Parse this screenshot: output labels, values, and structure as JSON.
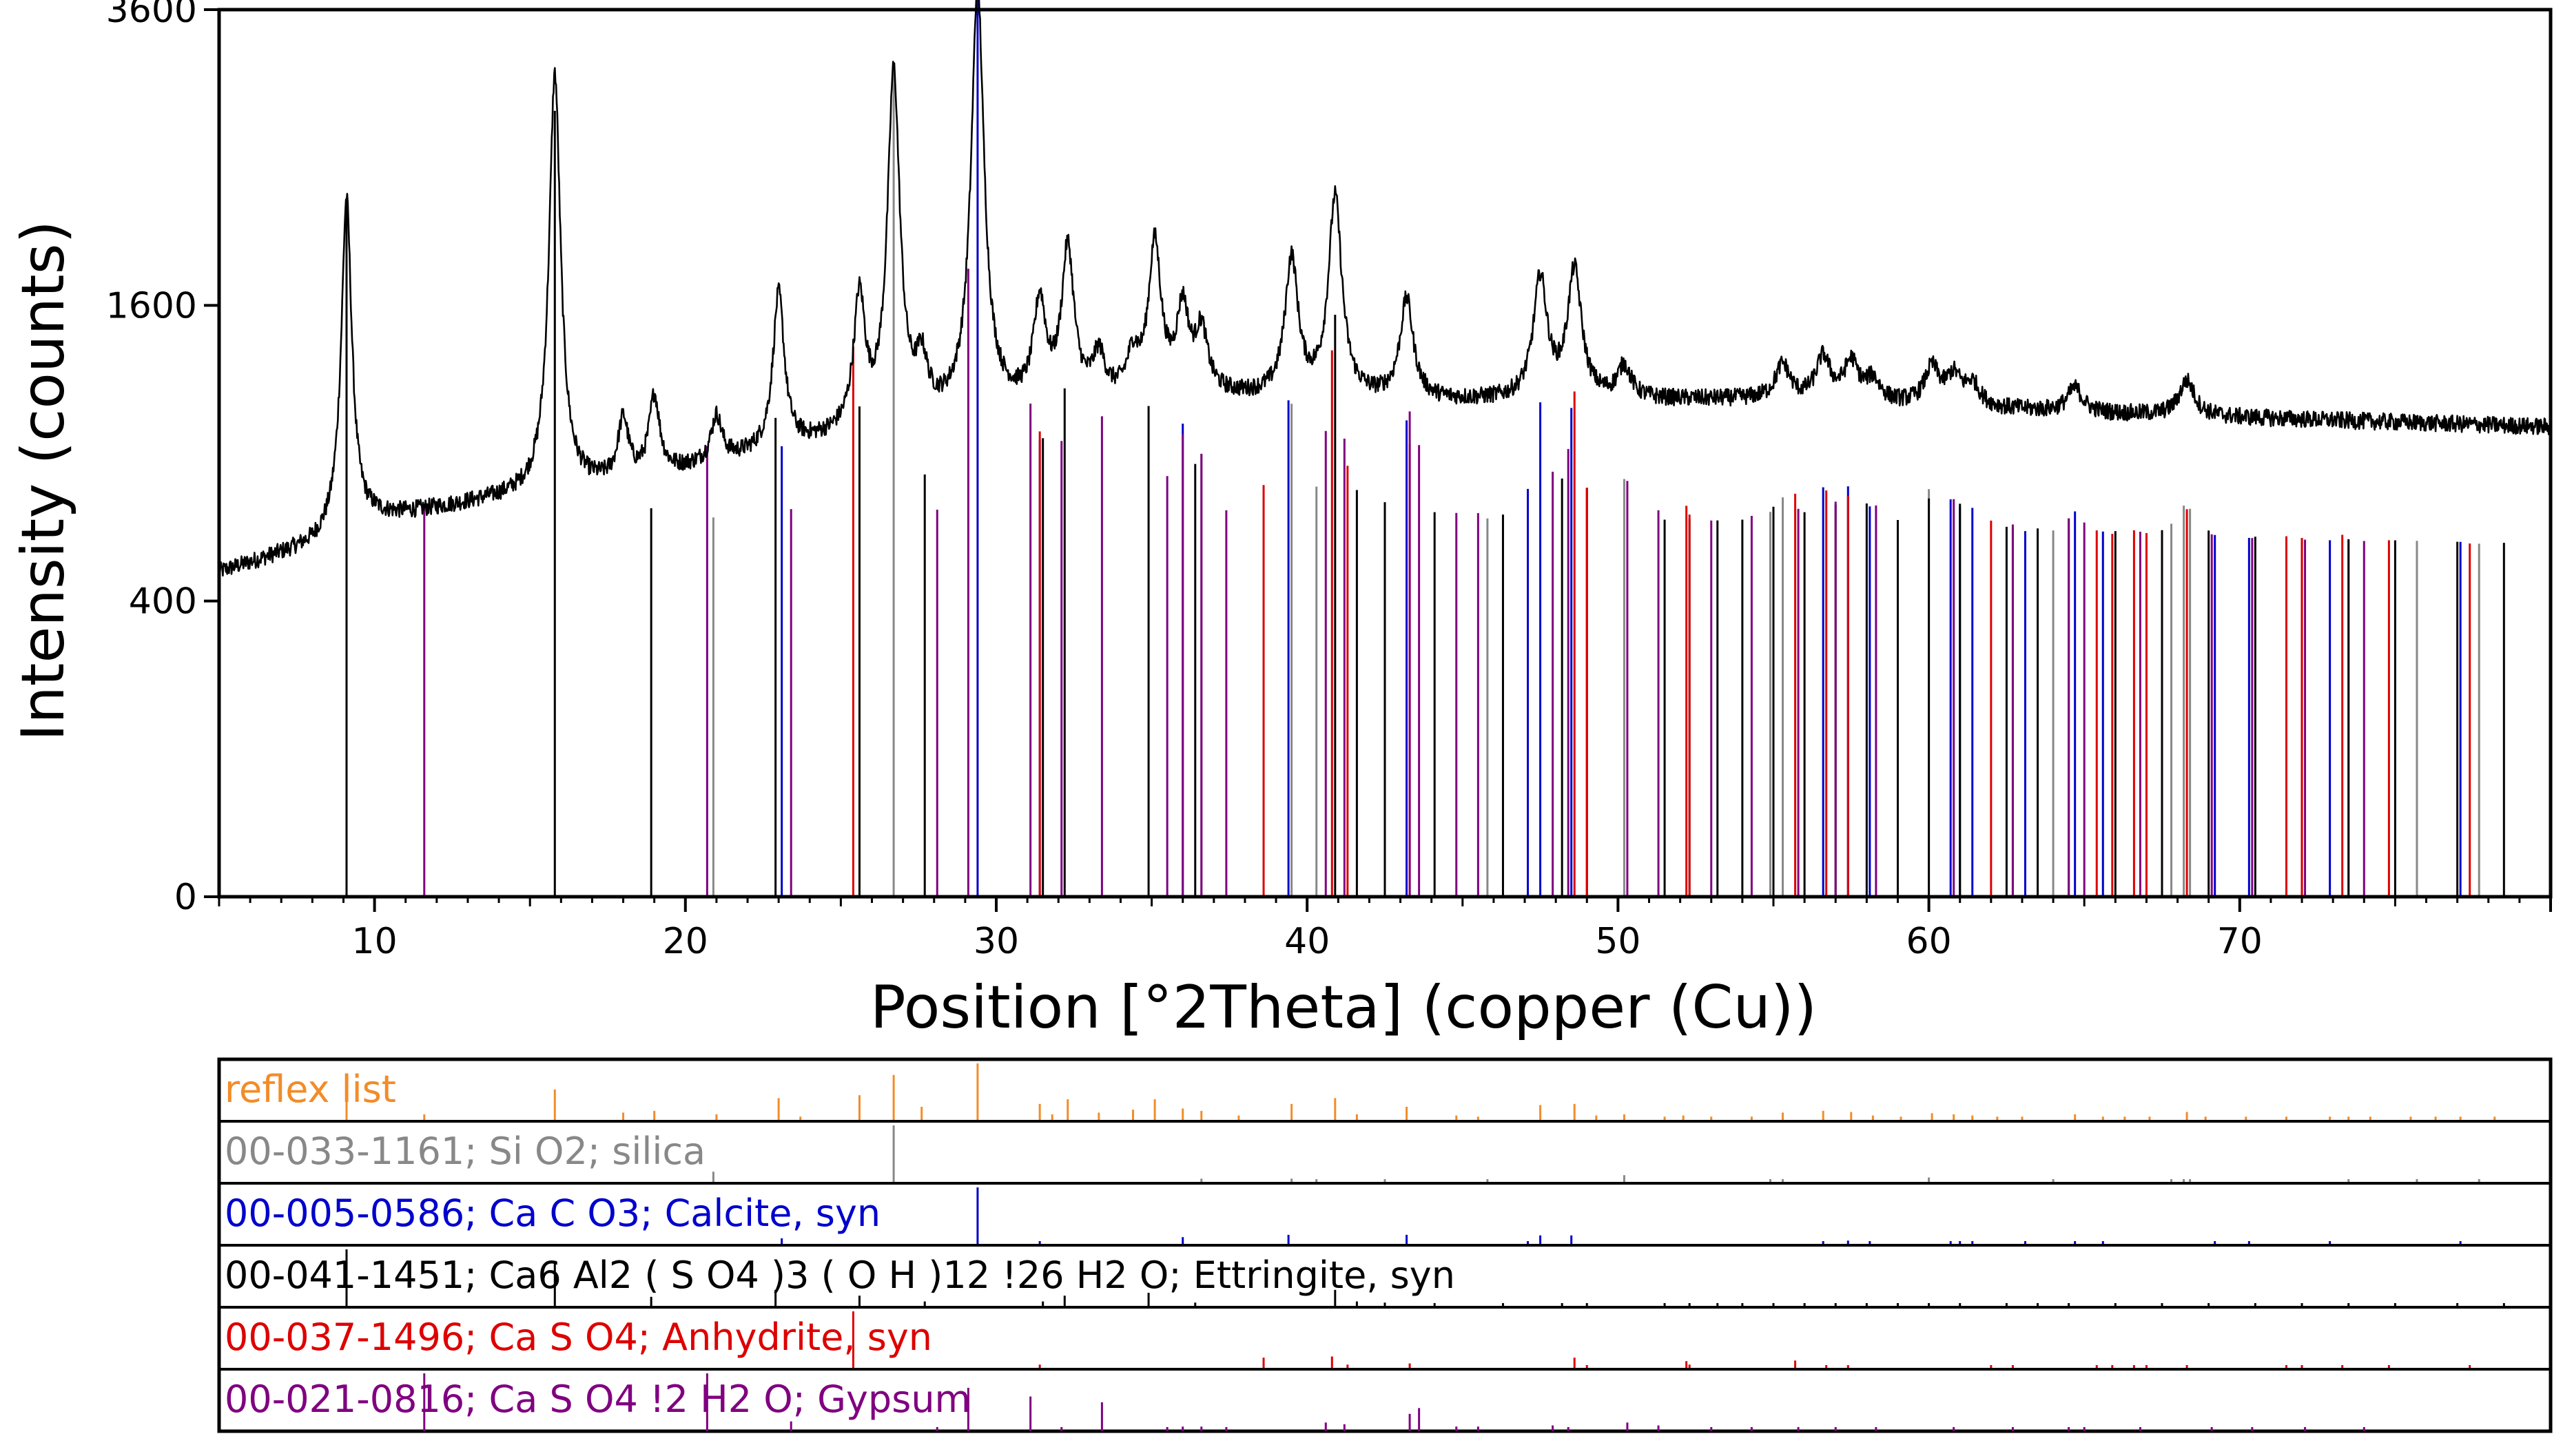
{
  "chart_data": {
    "type": "line",
    "title": "",
    "xlabel": "Position [°2Theta] (copper (Cu))",
    "ylabel": "Intensity (counts)",
    "xlim": [
      5,
      80
    ],
    "ylim": [
      0,
      3600
    ],
    "y_scale": "sqrt",
    "x_ticks": [
      10,
      20,
      30,
      40,
      50,
      60,
      70
    ],
    "y_ticks": [
      0,
      400,
      1600,
      3600
    ],
    "baseline": [
      [
        5,
        480
      ],
      [
        8,
        560
      ],
      [
        10,
        650
      ],
      [
        14,
        720
      ],
      [
        18,
        780
      ],
      [
        22,
        880
      ],
      [
        26,
        980
      ],
      [
        30,
        1080
      ],
      [
        36,
        1140
      ],
      [
        44,
        1120
      ],
      [
        55,
        1130
      ],
      [
        65,
        1070
      ],
      [
        80,
        1010
      ]
    ],
    "peaks": [
      [
        9.1,
        1620
      ],
      [
        15.8,
        2350
      ],
      [
        18.0,
        250
      ],
      [
        19.0,
        330
      ],
      [
        21.0,
        190
      ],
      [
        23.0,
        750
      ],
      [
        25.6,
        650
      ],
      [
        26.7,
        2100
      ],
      [
        27.6,
        240
      ],
      [
        29.4,
        2700
      ],
      [
        31.4,
        500
      ],
      [
        32.3,
        800
      ],
      [
        33.3,
        200
      ],
      [
        34.4,
        180
      ],
      [
        35.1,
        800
      ],
      [
        36.0,
        420
      ],
      [
        36.6,
        300
      ],
      [
        39.5,
        720
      ],
      [
        40.9,
        1100
      ],
      [
        43.2,
        500
      ],
      [
        47.5,
        620
      ],
      [
        48.6,
        660
      ],
      [
        50.2,
        150
      ],
      [
        55.3,
        160
      ],
      [
        56.6,
        200
      ],
      [
        57.5,
        180
      ],
      [
        58.2,
        100
      ],
      [
        60.1,
        170
      ],
      [
        60.8,
        130
      ],
      [
        61.4,
        100
      ],
      [
        64.7,
        110
      ],
      [
        68.3,
        160
      ]
    ],
    "series": [
      {
        "name": "reflex list",
        "code": "reflex list",
        "color": "#f28c28",
        "peaks": [
          [
            9.1,
            35
          ],
          [
            11.6,
            12
          ],
          [
            15.8,
            55
          ],
          [
            18.0,
            15
          ],
          [
            19.0,
            18
          ],
          [
            21.0,
            12
          ],
          [
            23.0,
            40
          ],
          [
            23.7,
            8
          ],
          [
            25.6,
            45
          ],
          [
            26.7,
            80
          ],
          [
            27.6,
            25
          ],
          [
            29.4,
            100
          ],
          [
            31.4,
            30
          ],
          [
            31.8,
            12
          ],
          [
            32.3,
            38
          ],
          [
            33.3,
            15
          ],
          [
            34.4,
            20
          ],
          [
            35.1,
            38
          ],
          [
            36.0,
            22
          ],
          [
            36.6,
            18
          ],
          [
            37.8,
            10
          ],
          [
            39.5,
            30
          ],
          [
            40.9,
            40
          ],
          [
            41.6,
            12
          ],
          [
            43.2,
            25
          ],
          [
            44.8,
            10
          ],
          [
            45.5,
            8
          ],
          [
            47.5,
            28
          ],
          [
            48.6,
            30
          ],
          [
            49.3,
            10
          ],
          [
            50.2,
            12
          ],
          [
            51.5,
            8
          ],
          [
            52.1,
            10
          ],
          [
            53.0,
            8
          ],
          [
            54.3,
            8
          ],
          [
            55.3,
            15
          ],
          [
            56.6,
            18
          ],
          [
            57.5,
            16
          ],
          [
            58.2,
            10
          ],
          [
            59.1,
            8
          ],
          [
            60.1,
            14
          ],
          [
            60.8,
            12
          ],
          [
            61.4,
            10
          ],
          [
            62.2,
            8
          ],
          [
            63.0,
            8
          ],
          [
            64.7,
            12
          ],
          [
            65.6,
            8
          ],
          [
            66.3,
            8
          ],
          [
            67.1,
            8
          ],
          [
            68.3,
            16
          ],
          [
            68.9,
            8
          ],
          [
            70.2,
            8
          ],
          [
            71.5,
            8
          ],
          [
            72.9,
            8
          ],
          [
            73.5,
            8
          ],
          [
            74.2,
            8
          ],
          [
            75.5,
            8
          ],
          [
            76.3,
            8
          ],
          [
            77.1,
            8
          ],
          [
            78.2,
            8
          ]
        ]
      },
      {
        "name": "silica",
        "code": "00-033-1161; Si O2; silica",
        "color": "#888888",
        "peaks": [
          [
            20.9,
            20
          ],
          [
            26.7,
            100
          ],
          [
            36.6,
            8
          ],
          [
            39.5,
            8
          ],
          [
            40.3,
            4
          ],
          [
            42.5,
            6
          ],
          [
            45.8,
            4
          ],
          [
            50.2,
            14
          ],
          [
            54.9,
            4
          ],
          [
            55.3,
            2
          ],
          [
            60.0,
            10
          ],
          [
            64.0,
            2
          ],
          [
            67.8,
            6
          ],
          [
            68.2,
            7
          ],
          [
            68.4,
            5
          ],
          [
            73.5,
            2
          ],
          [
            75.7,
            3
          ],
          [
            77.7,
            2
          ]
        ]
      },
      {
        "name": "Calcite, syn",
        "code": "00-005-0586; Ca C O3; Calcite, syn",
        "color": "#0000cc",
        "peaks": [
          [
            23.1,
            12
          ],
          [
            29.4,
            100
          ],
          [
            31.4,
            3
          ],
          [
            36.0,
            14
          ],
          [
            39.4,
            18
          ],
          [
            43.2,
            18
          ],
          [
            47.1,
            5
          ],
          [
            47.5,
            17
          ],
          [
            48.5,
            17
          ],
          [
            56.6,
            4
          ],
          [
            57.4,
            8
          ],
          [
            58.1,
            2
          ],
          [
            60.7,
            5
          ],
          [
            61.0,
            3
          ],
          [
            61.4,
            3
          ],
          [
            63.1,
            2
          ],
          [
            64.7,
            5
          ],
          [
            65.6,
            3
          ],
          [
            69.2,
            2
          ],
          [
            70.3,
            2
          ],
          [
            72.9,
            2
          ],
          [
            77.1,
            3
          ]
        ]
      },
      {
        "name": "Ettringite, syn",
        "code": "00-041-1451; Ca6 Al2 ( S O4 )3 ( O H )12 !26 H2 O; Ettringite, syn",
        "color": "#000000",
        "peaks": [
          [
            9.1,
            100
          ],
          [
            15.8,
            80
          ],
          [
            18.9,
            18
          ],
          [
            22.9,
            30
          ],
          [
            25.6,
            20
          ],
          [
            27.7,
            10
          ],
          [
            31.5,
            10
          ],
          [
            32.2,
            20
          ],
          [
            34.9,
            25
          ],
          [
            36.4,
            8
          ],
          [
            40.9,
            30
          ],
          [
            41.6,
            10
          ],
          [
            42.5,
            8
          ],
          [
            44.1,
            6
          ],
          [
            46.3,
            5
          ],
          [
            48.2,
            5
          ],
          [
            49.0,
            4
          ],
          [
            51.5,
            4
          ],
          [
            52.3,
            5
          ],
          [
            53.2,
            4
          ],
          [
            54.0,
            4
          ],
          [
            55.0,
            5
          ],
          [
            56.0,
            4
          ],
          [
            57.0,
            4
          ],
          [
            58.0,
            5
          ],
          [
            59.0,
            4
          ],
          [
            60.0,
            4
          ],
          [
            61.0,
            5
          ],
          [
            62.5,
            4
          ],
          [
            63.5,
            4
          ],
          [
            64.5,
            4
          ],
          [
            66.0,
            4
          ],
          [
            67.5,
            4
          ],
          [
            69.0,
            4
          ],
          [
            70.5,
            3
          ],
          [
            72.0,
            3
          ],
          [
            73.5,
            3
          ],
          [
            75.0,
            3
          ],
          [
            77.0,
            3
          ],
          [
            78.5,
            3
          ]
        ]
      },
      {
        "name": "Anhydrite, syn",
        "code": "00-037-1496; Ca S O4; Anhydrite, syn",
        "color": "#dd0000",
        "peaks": [
          [
            25.4,
            100
          ],
          [
            31.4,
            8
          ],
          [
            38.6,
            20
          ],
          [
            40.8,
            22
          ],
          [
            41.3,
            8
          ],
          [
            43.3,
            10
          ],
          [
            48.6,
            20
          ],
          [
            49.0,
            4
          ],
          [
            52.2,
            14
          ],
          [
            52.3,
            8
          ],
          [
            55.7,
            15
          ],
          [
            56.7,
            4
          ],
          [
            57.4,
            2
          ],
          [
            62.0,
            6
          ],
          [
            62.7,
            4
          ],
          [
            65.4,
            3
          ],
          [
            65.9,
            2
          ],
          [
            66.6,
            5
          ],
          [
            67.0,
            3
          ],
          [
            68.3,
            3
          ],
          [
            71.5,
            4
          ],
          [
            72.0,
            3
          ],
          [
            73.3,
            6
          ],
          [
            74.8,
            3
          ],
          [
            77.4,
            2
          ]
        ]
      },
      {
        "name": "Gypsum",
        "code": "00-021-0816; Ca S O4 !2 H2 O; Gypsum",
        "color": "#800080",
        "peaks": [
          [
            11.6,
            100
          ],
          [
            20.7,
            100
          ],
          [
            23.4,
            17
          ],
          [
            28.1,
            4
          ],
          [
            29.1,
            75
          ],
          [
            31.1,
            60
          ],
          [
            32.1,
            7
          ],
          [
            33.4,
            50
          ],
          [
            35.5,
            2
          ],
          [
            36.0,
            8
          ],
          [
            36.6,
            8
          ],
          [
            37.4,
            4
          ],
          [
            40.6,
            15
          ],
          [
            41.2,
            12
          ],
          [
            43.3,
            30
          ],
          [
            43.6,
            40
          ],
          [
            44.8,
            8
          ],
          [
            45.5,
            8
          ],
          [
            47.9,
            10
          ],
          [
            48.4,
            6
          ],
          [
            50.3,
            15
          ],
          [
            51.3,
            10
          ],
          [
            53.0,
            4
          ],
          [
            54.3,
            6
          ],
          [
            55.8,
            6
          ],
          [
            57.0,
            6
          ],
          [
            58.3,
            4
          ],
          [
            60.8,
            4
          ],
          [
            62.7,
            6
          ],
          [
            64.5,
            4
          ],
          [
            65.0,
            4
          ],
          [
            66.8,
            4
          ],
          [
            69.1,
            2
          ],
          [
            70.4,
            2
          ],
          [
            72.1,
            2
          ],
          [
            74.0,
            2
          ]
        ]
      }
    ]
  }
}
